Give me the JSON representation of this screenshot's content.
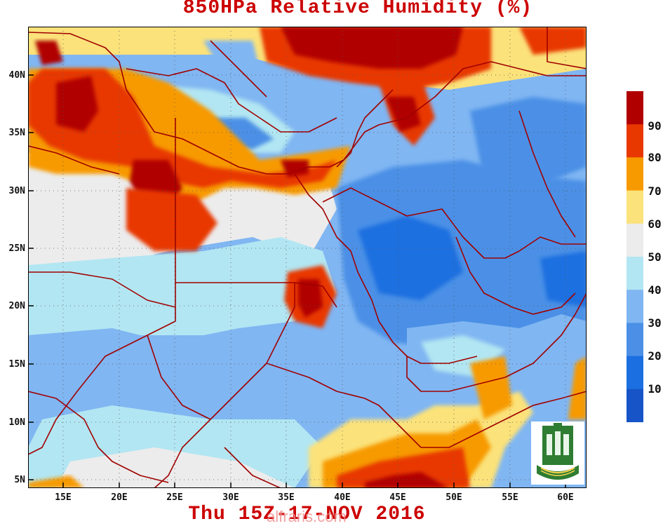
{
  "title": "850HPa Relative Humidity (%)",
  "footer": "Thu 15Z-17-NOV 2016",
  "watermark": "alfraris.com",
  "axes": {
    "x_ticks": [
      "15E",
      "20E",
      "25E",
      "30E",
      "35E",
      "40E",
      "45E",
      "50E",
      "55E",
      "60E"
    ],
    "y_ticks": [
      "40N",
      "35N",
      "30N",
      "25N",
      "20N",
      "15N",
      "10N",
      "5N"
    ]
  },
  "colorbar": {
    "labels": [
      "90",
      "80",
      "70",
      "60",
      "50",
      "40",
      "30",
      "20",
      "10"
    ],
    "colors": [
      "#b00000",
      "#e83800",
      "#f79a00",
      "#fbe27a",
      "#ececec",
      "#b2e6f2",
      "#80b6f2",
      "#4b90e6",
      "#1b6fe0",
      "#1654c8"
    ]
  },
  "colors": {
    "title": "#cc0000",
    "borders": "#a00000",
    "grid": "#555555"
  },
  "logo": {
    "name": "university-seal"
  }
}
